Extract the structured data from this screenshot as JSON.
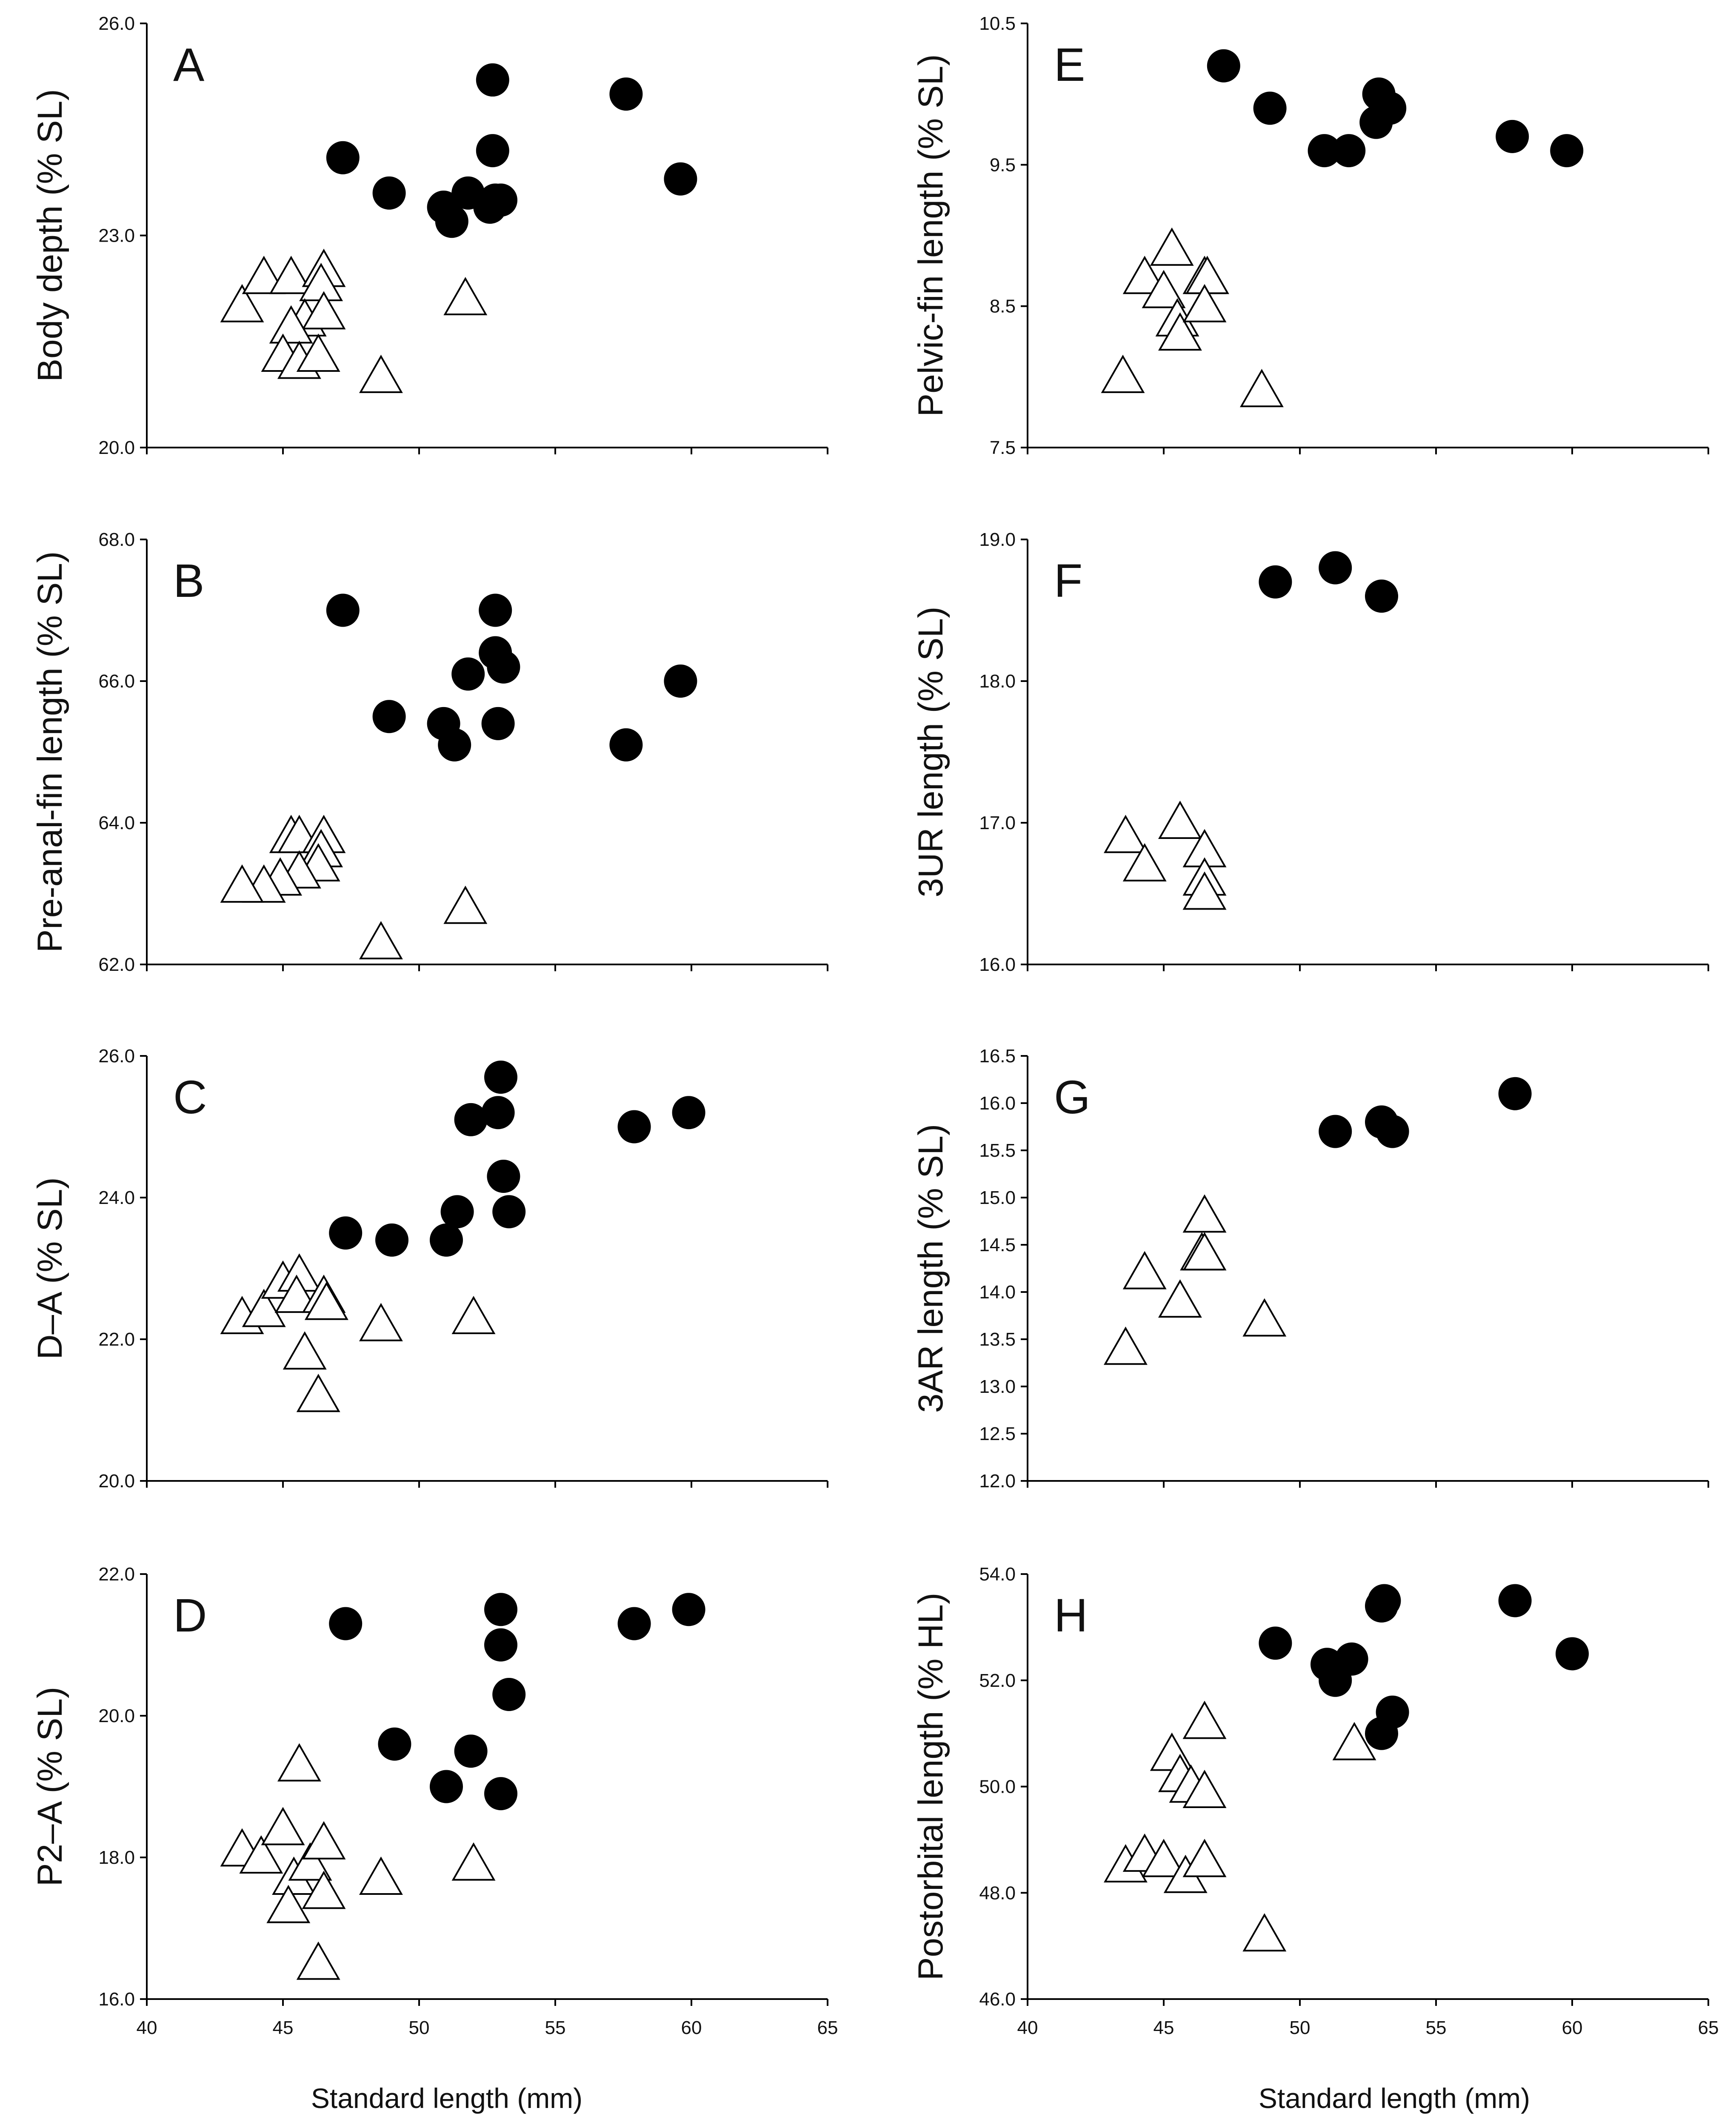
{
  "figure": {
    "x_axis_title": "Standard length (mm)",
    "marker_fill_circle": "#000000",
    "marker_fill_triangle": "#ffffff",
    "marker_stroke": "#000000"
  },
  "chart_data": [
    {
      "panel": "A",
      "type": "scatter",
      "ylabel": "Body depth (% SL)",
      "xlabel": "Standard length (mm)",
      "xlim": [
        40,
        65
      ],
      "ylim": [
        20.0,
        26.0
      ],
      "xticks": [
        "40",
        "45",
        "50",
        "55",
        "60",
        "65"
      ],
      "yticks": [
        "20.0",
        "23.0",
        "26.0"
      ],
      "series": [
        {
          "name": "circles",
          "marker": "circle",
          "points": [
            [
              47.2,
              24.1
            ],
            [
              48.9,
              23.6
            ],
            [
              50.9,
              23.4
            ],
            [
              51.2,
              23.2
            ],
            [
              51.8,
              23.6
            ],
            [
              52.6,
              23.4
            ],
            [
              52.8,
              23.5
            ],
            [
              53.0,
              23.5
            ],
            [
              52.7,
              24.2
            ],
            [
              52.7,
              25.2
            ],
            [
              57.6,
              25.0
            ],
            [
              59.6,
              23.8
            ]
          ]
        },
        {
          "name": "triangles",
          "marker": "triangle",
          "points": [
            [
              43.5,
              22.0
            ],
            [
              44.3,
              22.4
            ],
            [
              45.3,
              22.4
            ],
            [
              46.5,
              22.5
            ],
            [
              46.4,
              22.3
            ],
            [
              45.8,
              21.8
            ],
            [
              46.5,
              21.9
            ],
            [
              45.3,
              21.7
            ],
            [
              45.0,
              21.3
            ],
            [
              45.6,
              21.2
            ],
            [
              46.3,
              21.3
            ],
            [
              48.6,
              21.0
            ],
            [
              51.7,
              22.1
            ]
          ]
        }
      ]
    },
    {
      "panel": "B",
      "type": "scatter",
      "ylabel": "Pre-anal-fin length (% SL)",
      "xlabel": "Standard length (mm)",
      "xlim": [
        40,
        65
      ],
      "ylim": [
        62.0,
        68.0
      ],
      "xticks": [
        "40",
        "45",
        "50",
        "55",
        "60",
        "65"
      ],
      "yticks": [
        "62.0",
        "64.0",
        "66.0",
        "68.0"
      ],
      "series": [
        {
          "name": "circles",
          "marker": "circle",
          "points": [
            [
              47.2,
              67.0
            ],
            [
              48.9,
              65.5
            ],
            [
              50.9,
              65.4
            ],
            [
              51.3,
              65.1
            ],
            [
              51.8,
              66.1
            ],
            [
              52.8,
              67.0
            ],
            [
              52.8,
              66.4
            ],
            [
              53.1,
              66.2
            ],
            [
              52.9,
              65.4
            ],
            [
              57.6,
              65.1
            ],
            [
              59.6,
              66.0
            ]
          ]
        },
        {
          "name": "triangles",
          "marker": "triangle",
          "points": [
            [
              45.3,
              63.8
            ],
            [
              45.6,
              63.8
            ],
            [
              46.5,
              63.8
            ],
            [
              46.4,
              63.6
            ],
            [
              46.3,
              63.4
            ],
            [
              45.6,
              63.3
            ],
            [
              44.9,
              63.2
            ],
            [
              44.3,
              63.1
            ],
            [
              43.5,
              63.1
            ],
            [
              48.6,
              62.3
            ],
            [
              51.7,
              62.8
            ]
          ]
        }
      ]
    },
    {
      "panel": "C",
      "type": "scatter",
      "ylabel": "D–A (% SL)",
      "xlabel": "Standard length (mm)",
      "xlim": [
        40,
        65
      ],
      "ylim": [
        20.0,
        26.0
      ],
      "xticks": [
        "40",
        "45",
        "50",
        "55",
        "60",
        "65"
      ],
      "yticks": [
        "20.0",
        "22.0",
        "24.0",
        "26.0"
      ],
      "series": [
        {
          "name": "circles",
          "marker": "circle",
          "points": [
            [
              47.3,
              23.5
            ],
            [
              49.0,
              23.4
            ],
            [
              51.0,
              23.4
            ],
            [
              51.4,
              23.8
            ],
            [
              51.9,
              25.1
            ],
            [
              53.0,
              25.7
            ],
            [
              52.9,
              25.2
            ],
            [
              53.1,
              24.3
            ],
            [
              53.3,
              23.8
            ],
            [
              57.9,
              25.0
            ],
            [
              59.9,
              25.2
            ]
          ]
        },
        {
          "name": "triangles",
          "marker": "triangle",
          "points": [
            [
              43.5,
              22.3
            ],
            [
              44.3,
              22.4
            ],
            [
              45.0,
              22.8
            ],
            [
              45.6,
              22.9
            ],
            [
              45.5,
              22.6
            ],
            [
              46.5,
              22.6
            ],
            [
              46.6,
              22.5
            ],
            [
              45.8,
              21.8
            ],
            [
              46.3,
              21.2
            ],
            [
              48.6,
              22.2
            ],
            [
              52.0,
              22.3
            ]
          ]
        }
      ]
    },
    {
      "panel": "D",
      "type": "scatter",
      "ylabel": "P2–A (% SL)",
      "xlabel": "Standard length (mm)",
      "xlim": [
        40,
        65
      ],
      "ylim": [
        16.0,
        22.0
      ],
      "xticks": [
        "40",
        "45",
        "50",
        "55",
        "60",
        "65"
      ],
      "yticks": [
        "16.0",
        "18.0",
        "20.0",
        "22.0"
      ],
      "series": [
        {
          "name": "circles",
          "marker": "circle",
          "points": [
            [
              47.3,
              21.3
            ],
            [
              49.1,
              19.6
            ],
            [
              51.0,
              19.0
            ],
            [
              51.9,
              19.5
            ],
            [
              53.0,
              21.5
            ],
            [
              53.0,
              21.0
            ],
            [
              53.3,
              20.3
            ],
            [
              53.0,
              18.9
            ],
            [
              57.9,
              21.3
            ],
            [
              59.9,
              21.5
            ]
          ]
        },
        {
          "name": "triangles",
          "marker": "triangle",
          "points": [
            [
              43.5,
              18.1
            ],
            [
              44.2,
              18.0
            ],
            [
              45.0,
              18.4
            ],
            [
              45.6,
              19.3
            ],
            [
              45.4,
              17.7
            ],
            [
              46.0,
              17.9
            ],
            [
              46.5,
              18.2
            ],
            [
              46.5,
              17.5
            ],
            [
              45.2,
              17.3
            ],
            [
              46.3,
              16.5
            ],
            [
              48.6,
              17.7
            ],
            [
              52.0,
              17.9
            ]
          ]
        }
      ]
    },
    {
      "panel": "E",
      "type": "scatter",
      "ylabel": "Pelvic-fin length (% SL)",
      "xlabel": "Standard length (mm)",
      "xlim": [
        40,
        65
      ],
      "ylim": [
        7.5,
        10.5
      ],
      "xticks": [
        "40",
        "45",
        "50",
        "55",
        "60",
        "65"
      ],
      "yticks": [
        "7.5",
        "8.5",
        "9.5",
        "10.5"
      ],
      "series": [
        {
          "name": "circles",
          "marker": "circle",
          "points": [
            [
              47.2,
              10.2
            ],
            [
              48.9,
              9.9
            ],
            [
              50.9,
              9.6
            ],
            [
              51.8,
              9.6
            ],
            [
              52.8,
              9.8
            ],
            [
              53.3,
              9.9
            ],
            [
              52.9,
              10.0
            ],
            [
              57.8,
              9.7
            ],
            [
              59.8,
              9.6
            ]
          ]
        },
        {
          "name": "triangles",
          "marker": "triangle",
          "points": [
            [
              43.5,
              8.0
            ],
            [
              44.3,
              8.7
            ],
            [
              45.0,
              8.6
            ],
            [
              45.3,
              8.9
            ],
            [
              45.5,
              8.4
            ],
            [
              45.6,
              8.3
            ],
            [
              46.5,
              8.7
            ],
            [
              46.6,
              8.7
            ],
            [
              46.5,
              8.5
            ],
            [
              48.6,
              7.9
            ]
          ]
        }
      ]
    },
    {
      "panel": "F",
      "type": "scatter",
      "ylabel": "3UR length (% SL)",
      "xlabel": "Standard length (mm)",
      "xlim": [
        40,
        65
      ],
      "ylim": [
        16.0,
        19.0
      ],
      "xticks": [
        "40",
        "45",
        "50",
        "55",
        "60",
        "65"
      ],
      "yticks": [
        "16.0",
        "17.0",
        "18.0",
        "19.0"
      ],
      "series": [
        {
          "name": "circles",
          "marker": "circle",
          "points": [
            [
              49.1,
              18.7
            ],
            [
              51.3,
              18.8
            ],
            [
              53.0,
              18.6
            ]
          ]
        },
        {
          "name": "triangles",
          "marker": "triangle",
          "points": [
            [
              43.6,
              16.9
            ],
            [
              44.3,
              16.7
            ],
            [
              45.6,
              17.0
            ],
            [
              46.5,
              16.8
            ],
            [
              46.5,
              16.6
            ],
            [
              46.5,
              16.5
            ]
          ]
        }
      ]
    },
    {
      "panel": "G",
      "type": "scatter",
      "ylabel": "3AR length (% SL)",
      "xlabel": "Standard length (mm)",
      "xlim": [
        40,
        65
      ],
      "ylim": [
        12.0,
        16.5
      ],
      "xticks": [
        "40",
        "45",
        "50",
        "55",
        "60",
        "65"
      ],
      "yticks": [
        "12.0",
        "12.5",
        "13.0",
        "13.5",
        "14.0",
        "14.5",
        "15.0",
        "15.5",
        "16.0",
        "16.5"
      ],
      "series": [
        {
          "name": "circles",
          "marker": "circle",
          "points": [
            [
              51.3,
              15.7
            ],
            [
              53.0,
              15.8
            ],
            [
              53.4,
              15.7
            ],
            [
              57.9,
              16.1
            ]
          ]
        },
        {
          "name": "triangles",
          "marker": "triangle",
          "points": [
            [
              43.6,
              13.4
            ],
            [
              44.3,
              14.2
            ],
            [
              45.6,
              13.9
            ],
            [
              46.5,
              14.8
            ],
            [
              46.4,
              14.4
            ],
            [
              46.5,
              14.4
            ],
            [
              48.7,
              13.7
            ]
          ]
        }
      ]
    },
    {
      "panel": "H",
      "type": "scatter",
      "ylabel": "Postorbital length (% HL)",
      "xlabel": "Standard length (mm)",
      "xlim": [
        40,
        65
      ],
      "ylim": [
        46.0,
        54.0
      ],
      "xticks": [
        "40",
        "45",
        "50",
        "55",
        "60",
        "65"
      ],
      "yticks": [
        "46.0",
        "48.0",
        "50.0",
        "52.0",
        "54.0"
      ],
      "series": [
        {
          "name": "circles",
          "marker": "circle",
          "points": [
            [
              49.1,
              52.7
            ],
            [
              51.0,
              52.3
            ],
            [
              51.3,
              52.0
            ],
            [
              51.9,
              52.4
            ],
            [
              53.1,
              53.5
            ],
            [
              53.0,
              53.4
            ],
            [
              53.4,
              51.4
            ],
            [
              53.0,
              51.0
            ],
            [
              57.9,
              53.5
            ],
            [
              60.0,
              52.5
            ]
          ]
        },
        {
          "name": "triangles",
          "marker": "triangle",
          "points": [
            [
              43.6,
              48.5
            ],
            [
              44.3,
              48.7
            ],
            [
              45.0,
              48.6
            ],
            [
              45.3,
              50.6
            ],
            [
              45.6,
              50.2
            ],
            [
              46.0,
              50.0
            ],
            [
              46.5,
              49.9
            ],
            [
              46.5,
              51.2
            ],
            [
              45.8,
              48.3
            ],
            [
              46.5,
              48.6
            ],
            [
              48.7,
              47.2
            ],
            [
              52.0,
              50.8
            ]
          ]
        }
      ]
    }
  ]
}
